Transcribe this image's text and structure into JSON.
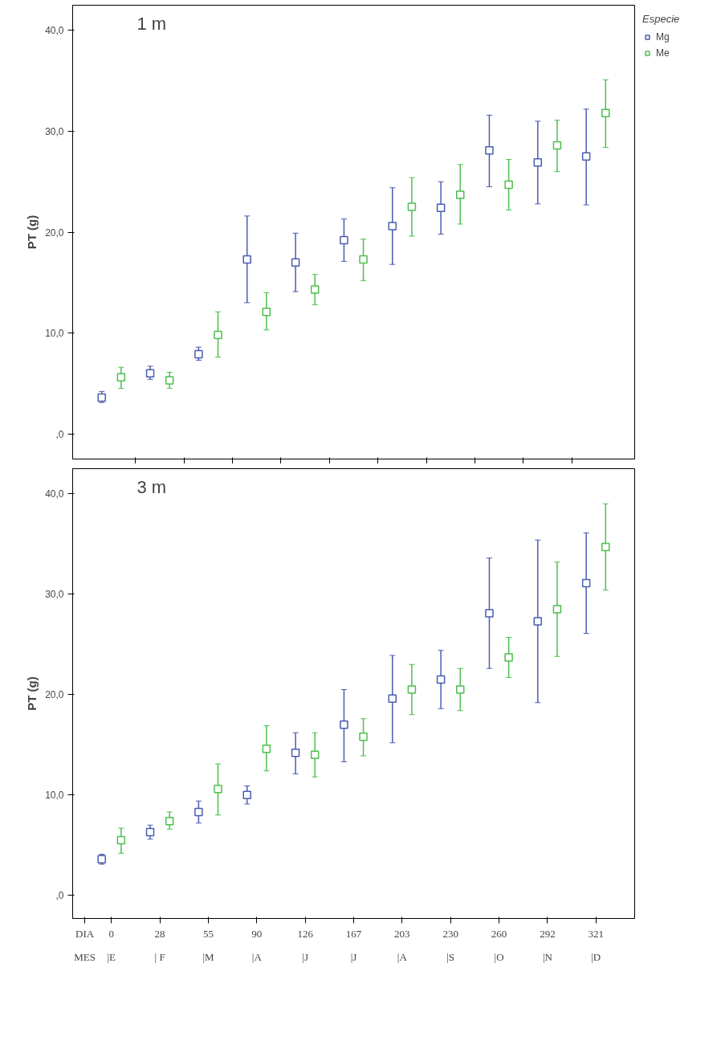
{
  "chart_data": [
    {
      "type": "scatter",
      "title": "1 m",
      "ylabel": "PT (g)",
      "legend_title": "Especie",
      "legend": "top right",
      "marker": "square",
      "grid": false,
      "tick_labels": "y",
      "categories": [
        "0",
        "28",
        "55",
        "90",
        "126",
        "167",
        "203",
        "230",
        "260",
        "292",
        "321"
      ],
      "ylim": [
        -2.5,
        42.5
      ],
      "yticks": [
        {
          "value": 0,
          "label": ",0"
        },
        {
          "value": 10,
          "label": "10,0"
        },
        {
          "value": 20,
          "label": "20,0"
        },
        {
          "value": 30,
          "label": "30,0"
        },
        {
          "value": 40,
          "label": "40,0"
        }
      ],
      "series": [
        {
          "name": "Mg",
          "color": "#4a5cb3",
          "values": [
            3.6,
            6.0,
            7.9,
            17.3,
            17.0,
            19.2,
            20.6,
            22.4,
            28.1,
            26.9,
            27.5
          ],
          "errors": [
            [
              3.1,
              4.2
            ],
            [
              5.4,
              6.7
            ],
            [
              7.3,
              8.6
            ],
            [
              13.0,
              21.6
            ],
            [
              14.1,
              19.9
            ],
            [
              17.1,
              21.3
            ],
            [
              16.8,
              24.4
            ],
            [
              19.8,
              25.0
            ],
            [
              24.5,
              31.6
            ],
            [
              22.8,
              31.0
            ],
            [
              22.7,
              32.2
            ]
          ]
        },
        {
          "name": "Me",
          "color": "#4cbf4c",
          "values": [
            5.6,
            5.3,
            9.8,
            12.1,
            14.3,
            17.3,
            22.5,
            23.7,
            24.7,
            28.6,
            31.8
          ],
          "errors": [
            [
              4.5,
              6.6
            ],
            [
              4.5,
              6.1
            ],
            [
              7.6,
              12.1
            ],
            [
              10.3,
              14.0
            ],
            [
              12.8,
              15.8
            ],
            [
              15.2,
              19.3
            ],
            [
              19.6,
              25.4
            ],
            [
              20.8,
              26.7
            ],
            [
              22.2,
              27.2
            ],
            [
              26.0,
              31.1
            ],
            [
              28.4,
              35.1
            ]
          ]
        }
      ]
    },
    {
      "type": "scatter",
      "title": "3 m",
      "ylabel": "PT (g)",
      "legend": false,
      "marker": "square",
      "grid": false,
      "categories": [
        "0",
        "28",
        "55",
        "90",
        "126",
        "167",
        "203",
        "230",
        "260",
        "292",
        "321"
      ],
      "ylim": [
        -2.3,
        42.5
      ],
      "yticks": [
        {
          "value": 0,
          "label": ",0"
        },
        {
          "value": 10,
          "label": "10,0"
        },
        {
          "value": 20,
          "label": "20,0"
        },
        {
          "value": 30,
          "label": "30,0"
        },
        {
          "value": 40,
          "label": "40,0"
        }
      ],
      "annotations": [
        "DIA",
        "MES",
        "|E",
        "| F",
        "|M",
        "|A",
        "|J",
        "|J",
        "|A",
        "|S",
        "|O",
        "|N",
        "|D"
      ],
      "series": [
        {
          "color": "#4a5cb3",
          "values": [
            3.6,
            6.3,
            8.3,
            10.0,
            14.2,
            17.0,
            19.6,
            21.5,
            28.1,
            27.3,
            31.1
          ],
          "errors": [
            [
              3.1,
              4.1
            ],
            [
              5.6,
              7.0
            ],
            [
              7.2,
              9.4
            ],
            [
              9.1,
              10.9
            ],
            [
              12.1,
              16.2
            ],
            [
              13.3,
              20.5
            ],
            [
              15.2,
              23.9
            ],
            [
              18.6,
              24.4
            ],
            [
              22.6,
              33.6
            ],
            [
              19.2,
              35.4
            ],
            [
              26.1,
              36.1
            ]
          ]
        },
        {
          "color": "#4cbf4c",
          "values": [
            5.5,
            7.4,
            10.6,
            14.6,
            14.0,
            15.8,
            20.5,
            20.5,
            23.7,
            28.5,
            34.7
          ],
          "errors": [
            [
              4.2,
              6.7
            ],
            [
              6.6,
              8.3
            ],
            [
              8.0,
              13.1
            ],
            [
              12.4,
              16.9
            ],
            [
              11.8,
              16.2
            ],
            [
              13.9,
              17.6
            ],
            [
              18.0,
              23.0
            ],
            [
              18.4,
              22.6
            ],
            [
              21.7,
              25.7
            ],
            [
              23.8,
              33.2
            ],
            [
              30.4,
              39.0
            ]
          ]
        }
      ]
    }
  ]
}
